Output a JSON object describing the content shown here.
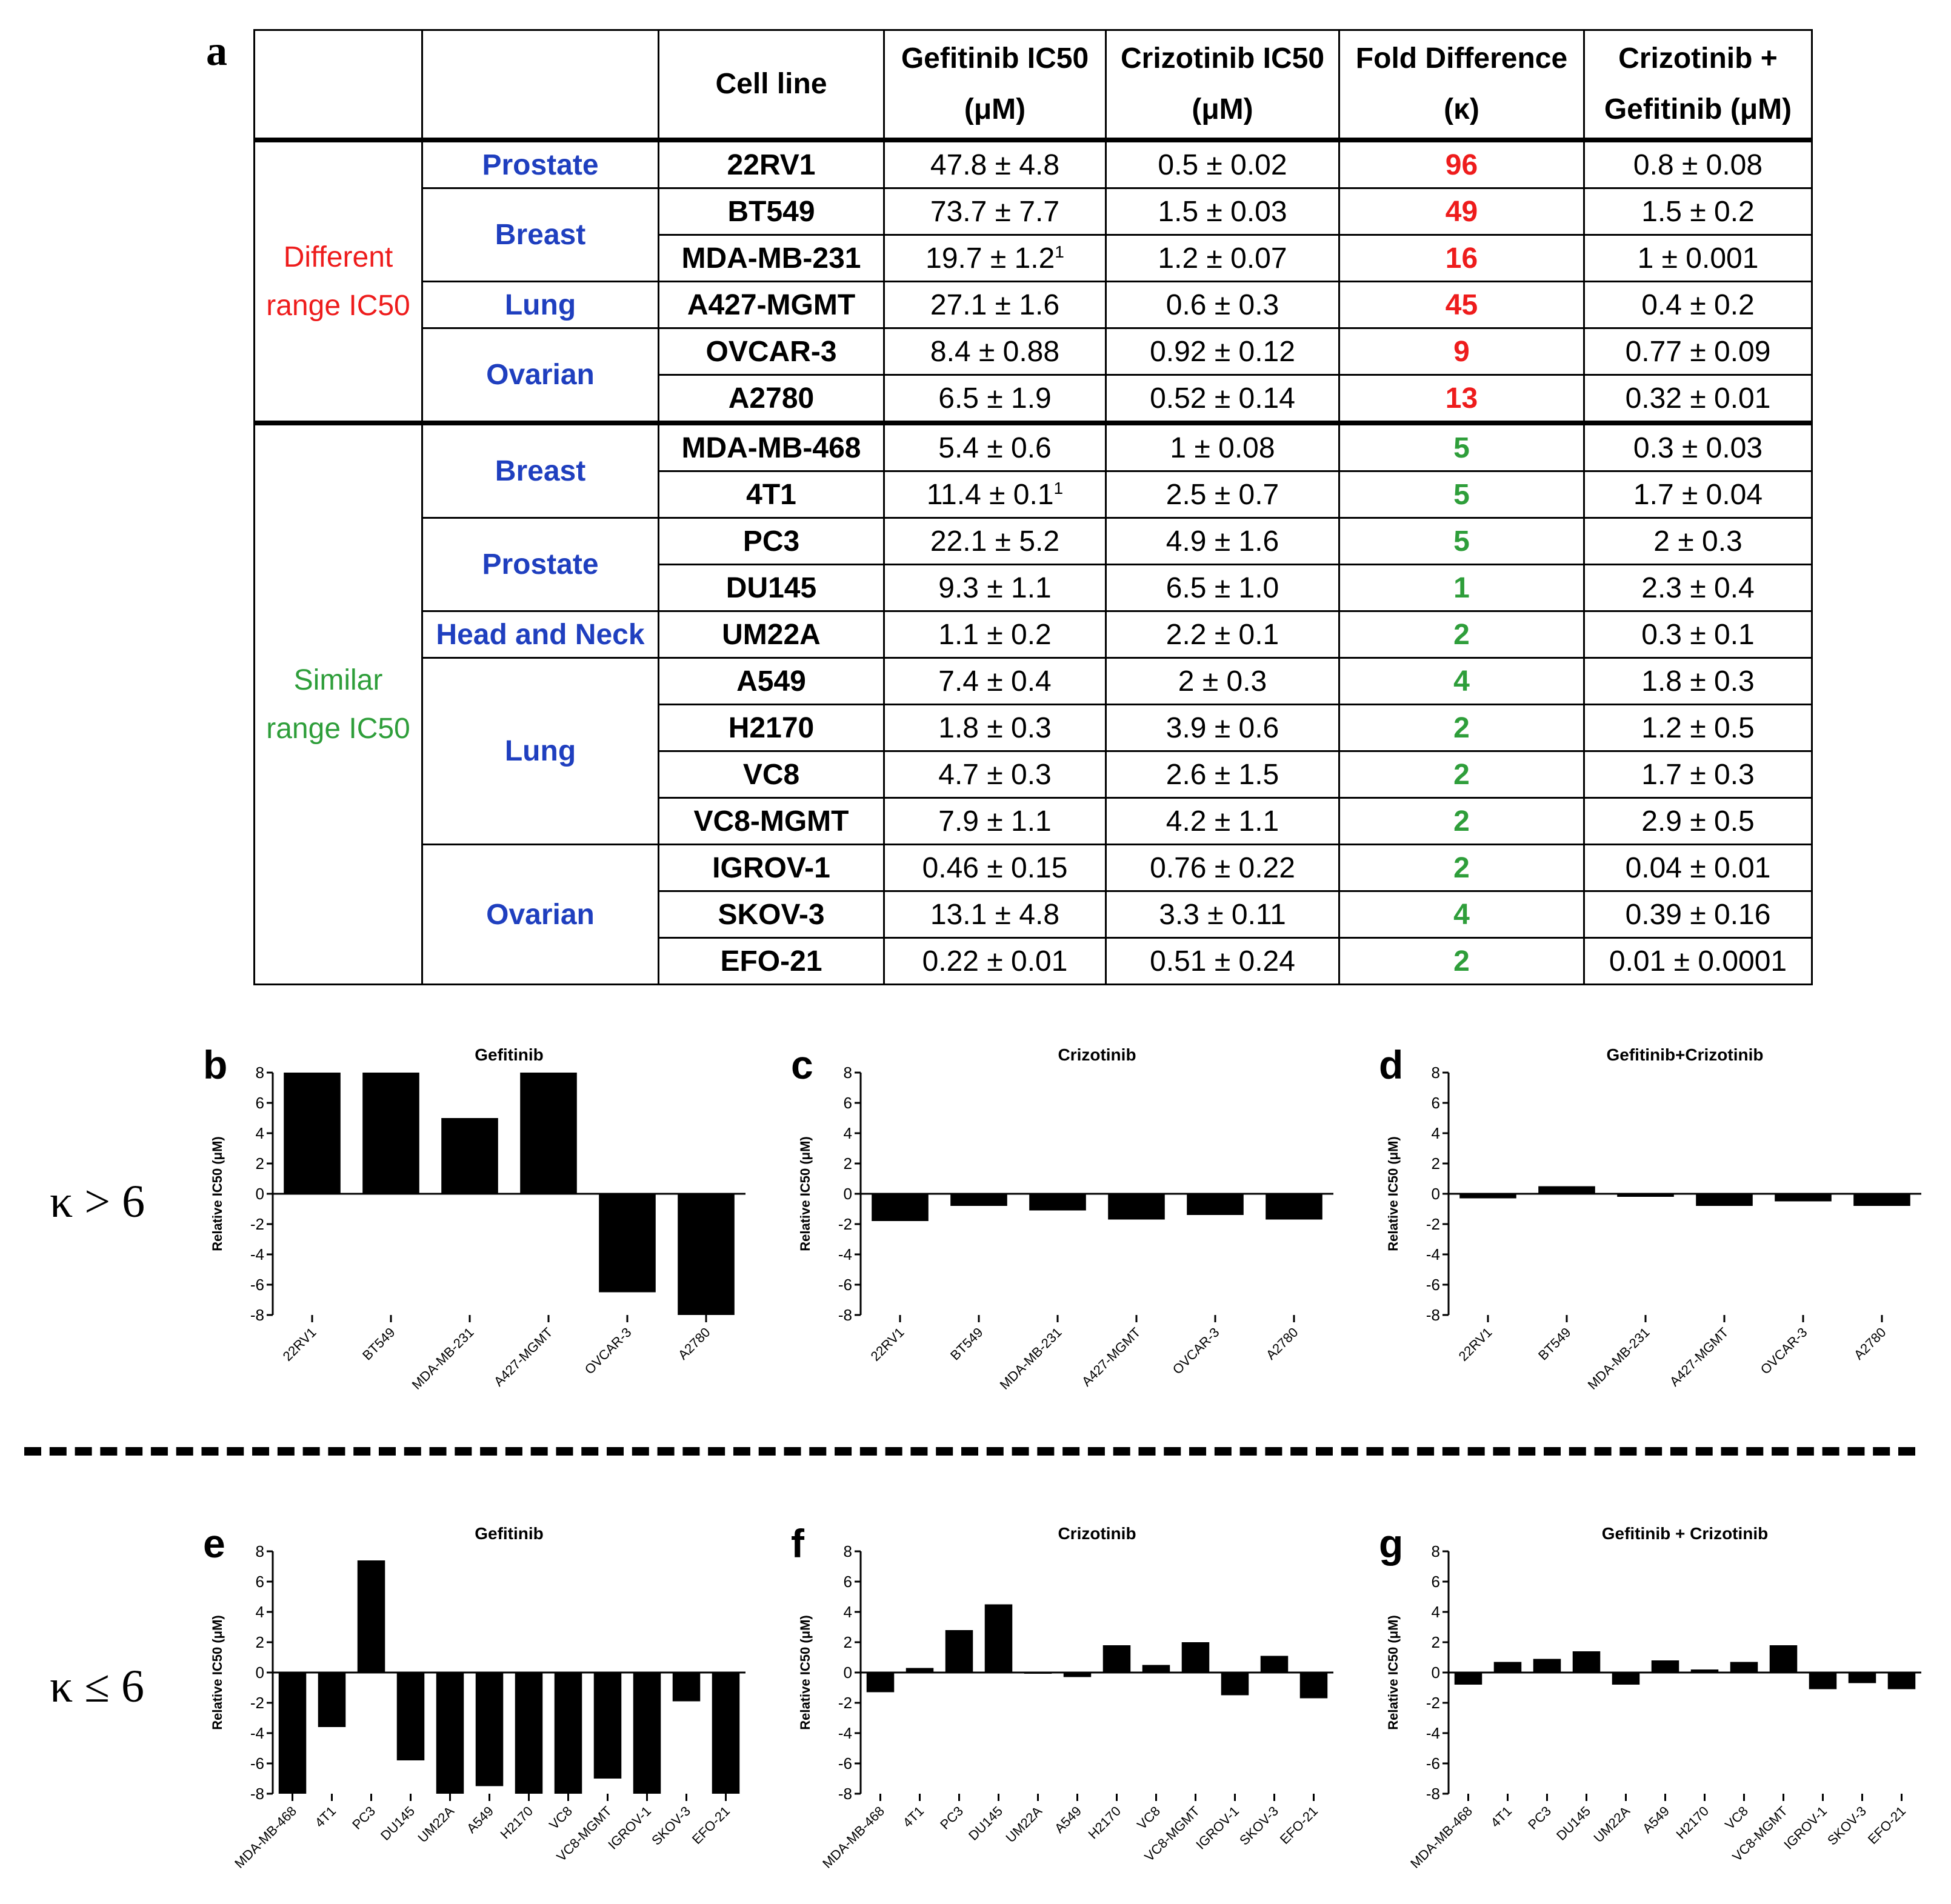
{
  "panel_a": {
    "letter": "a",
    "headers": {
      "cell_line": "Cell line",
      "gef_l1": "Gefitinib IC50",
      "gef_l2": "(μM)",
      "criz_l1": "Crizotinib IC50",
      "criz_l2": "(μM)",
      "fold_l1": "Fold Difference",
      "fold_l2": "(κ)",
      "combo_l1": "Crizotinib +",
      "combo_l2": "Gefitinib (μM)"
    },
    "group_different": {
      "l1": "Different",
      "l2": "range IC50"
    },
    "group_similar": {
      "l1": "Similar",
      "l2": "range IC50"
    },
    "tissues": {
      "prostate_1": "Prostate",
      "breast_1": "Breast",
      "lung_1": "Lung",
      "ovarian_1": "Ovarian",
      "breast_2": "Breast",
      "prostate_2": "Prostate",
      "headneck": "Head and Neck",
      "lung_2": "Lung",
      "ovarian_2": "Ovarian"
    },
    "rows": [
      {
        "cell": "22RV1",
        "gef": "47.8 ± 4.8",
        "criz": "0.5 ± 0.02",
        "fold": "96",
        "combo": "0.8 ± 0.08"
      },
      {
        "cell": "BT549",
        "gef": "73.7 ± 7.7",
        "criz": "1.5 ± 0.03",
        "fold": "49",
        "combo": "1.5 ± 0.2"
      },
      {
        "cell": "MDA-MB-231",
        "gef": "19.7 ± 1.2",
        "gef_sup": "1",
        "criz": "1.2 ± 0.07",
        "fold": "16",
        "combo": "1 ± 0.001"
      },
      {
        "cell": "A427-MGMT",
        "gef": "27.1 ± 1.6",
        "criz": "0.6 ± 0.3",
        "fold": "45",
        "combo": "0.4 ± 0.2"
      },
      {
        "cell": "OVCAR-3",
        "gef": "8.4 ± 0.88",
        "criz": "0.92 ± 0.12",
        "fold": "9",
        "combo": "0.77 ± 0.09"
      },
      {
        "cell": "A2780",
        "gef": "6.5 ± 1.9",
        "criz": "0.52 ± 0.14",
        "fold": "13",
        "combo": "0.32 ± 0.01"
      },
      {
        "cell": "MDA-MB-468",
        "gef": "5.4 ± 0.6",
        "criz": "1 ± 0.08",
        "fold": "5",
        "combo": "0.3 ± 0.03"
      },
      {
        "cell": "4T1",
        "gef": "11.4 ± 0.1",
        "gef_sup": "1",
        "criz": "2.5 ± 0.7",
        "fold": "5",
        "combo": "1.7 ± 0.04"
      },
      {
        "cell": "PC3",
        "gef": "22.1 ± 5.2",
        "criz": "4.9 ± 1.6",
        "fold": "5",
        "combo": "2 ± 0.3"
      },
      {
        "cell": "DU145",
        "gef": "9.3 ± 1.1",
        "criz": "6.5 ± 1.0",
        "fold": "1",
        "combo": "2.3 ± 0.4"
      },
      {
        "cell": "UM22A",
        "gef": "1.1 ± 0.2",
        "criz": "2.2 ± 0.1",
        "fold": "2",
        "combo": "0.3 ± 0.1"
      },
      {
        "cell": "A549",
        "gef": "7.4 ± 0.4",
        "criz": "2 ± 0.3",
        "fold": "4",
        "combo": "1.8 ± 0.3"
      },
      {
        "cell": "H2170",
        "gef": "1.8 ± 0.3",
        "criz": "3.9 ± 0.6",
        "fold": "2",
        "combo": "1.2 ± 0.5"
      },
      {
        "cell": "VC8",
        "gef": "4.7 ± 0.3",
        "criz": "2.6 ± 1.5",
        "fold": "2",
        "combo": "1.7 ± 0.3"
      },
      {
        "cell": "VC8-MGMT",
        "gef": "7.9 ± 1.1",
        "criz": "4.2 ± 1.1",
        "fold": "2",
        "combo": "2.9 ± 0.5"
      },
      {
        "cell": "IGROV-1",
        "gef": "0.46 ± 0.15",
        "criz": "0.76 ± 0.22",
        "fold": "2",
        "combo": "0.04 ± 0.01"
      },
      {
        "cell": "SKOV-3",
        "gef": "13.1 ± 4.8",
        "criz": "3.3 ± 0.11",
        "fold": "4",
        "combo": "0.39 ± 0.16"
      },
      {
        "cell": "EFO-21",
        "gef": "0.22 ± 0.01",
        "criz": "0.51 ± 0.24",
        "fold": "2",
        "combo": "0.01 ± 0.0001"
      }
    ]
  },
  "kappa_labels": {
    "top": "κ > 6",
    "bottom": "κ ≤ 6"
  },
  "colors": {
    "different": "#ee1c1c",
    "similar": "#2e9e3a",
    "tissue": "#1f3fbf",
    "bar": "#000000"
  },
  "chart_data": [
    {
      "panel": "b",
      "type": "bar",
      "title": "Gefitinib",
      "ylabel": "Relative IC50 (μM)",
      "ylim": [
        -8,
        8
      ],
      "yticks": [
        8,
        6,
        4,
        2,
        0,
        -2,
        -4,
        -6,
        -8
      ],
      "categories": [
        "22RV1",
        "BT549",
        "MDA-MB-231",
        "A427-MGMT",
        "OVCAR-3",
        "A2780"
      ],
      "values": [
        8,
        8,
        5,
        8,
        -6.5,
        -8
      ]
    },
    {
      "panel": "c",
      "type": "bar",
      "title": "Crizotinib",
      "ylabel": "Relative IC50 (μM)",
      "ylim": [
        -8,
        8
      ],
      "yticks": [
        8,
        6,
        4,
        2,
        0,
        -2,
        -4,
        -6,
        -8
      ],
      "categories": [
        "22RV1",
        "BT549",
        "MDA-MB-231",
        "A427-MGMT",
        "OVCAR-3",
        "A2780"
      ],
      "values": [
        -1.8,
        -0.8,
        -1.1,
        -1.7,
        -1.4,
        -1.7
      ]
    },
    {
      "panel": "d",
      "type": "bar",
      "title": "Gefitinib+Crizotinib",
      "ylabel": "Relative IC50 (μM)",
      "ylim": [
        -8,
        8
      ],
      "yticks": [
        8,
        6,
        4,
        2,
        0,
        -2,
        -4,
        -6,
        -8
      ],
      "categories": [
        "22RV1",
        "BT549",
        "MDA-MB-231",
        "A427-MGMT",
        "OVCAR-3",
        "A2780"
      ],
      "values": [
        -0.3,
        0.5,
        -0.2,
        -0.8,
        -0.5,
        -0.8
      ]
    },
    {
      "panel": "e",
      "type": "bar",
      "title": "Gefitinib",
      "ylabel": "Relative IC50 (μM)",
      "ylim": [
        -8,
        8
      ],
      "yticks": [
        8,
        6,
        4,
        2,
        0,
        -2,
        -4,
        -6,
        -8
      ],
      "categories": [
        "MDA-MB-468",
        "4T1",
        "PC3",
        "DU145",
        "UM22A",
        "A549",
        "H2170",
        "VC8",
        "VC8-MGMT",
        "IGROV-1",
        "SKOV-3",
        "EFO-21"
      ],
      "values": [
        -8,
        -3.6,
        7.4,
        -5.8,
        -8,
        -7.5,
        -8,
        -8,
        -7,
        -8,
        -1.9,
        -8
      ]
    },
    {
      "panel": "f",
      "type": "bar",
      "title": "Crizotinib",
      "ylabel": "Relative IC50 (μM)",
      "ylim": [
        -8,
        8
      ],
      "yticks": [
        8,
        6,
        4,
        2,
        0,
        -2,
        -4,
        -6,
        -8
      ],
      "categories": [
        "MDA-MB-468",
        "4T1",
        "PC3",
        "DU145",
        "UM22A",
        "A549",
        "H2170",
        "VC8",
        "VC8-MGMT",
        "IGROV-1",
        "SKOV-3",
        "EFO-21"
      ],
      "values": [
        -1.3,
        0.3,
        2.8,
        4.5,
        0,
        -0.3,
        1.8,
        0.5,
        2,
        -1.5,
        1.1,
        -1.7
      ]
    },
    {
      "panel": "g",
      "type": "bar",
      "title": "Gefitinib + Crizotinib",
      "ylabel": "Relative IC50 (μM)",
      "ylim": [
        -8,
        8
      ],
      "yticks": [
        8,
        6,
        4,
        2,
        0,
        -2,
        -4,
        -6,
        -8
      ],
      "categories": [
        "MDA-MB-468",
        "4T1",
        "PC3",
        "DU145",
        "UM22A",
        "A549",
        "H2170",
        "VC8",
        "VC8-MGMT",
        "IGROV-1",
        "SKOV-3",
        "EFO-21"
      ],
      "values": [
        -0.8,
        0.7,
        0.9,
        1.4,
        -0.8,
        0.8,
        0.2,
        0.7,
        1.8,
        -1.1,
        -0.7,
        -1.1
      ]
    }
  ]
}
